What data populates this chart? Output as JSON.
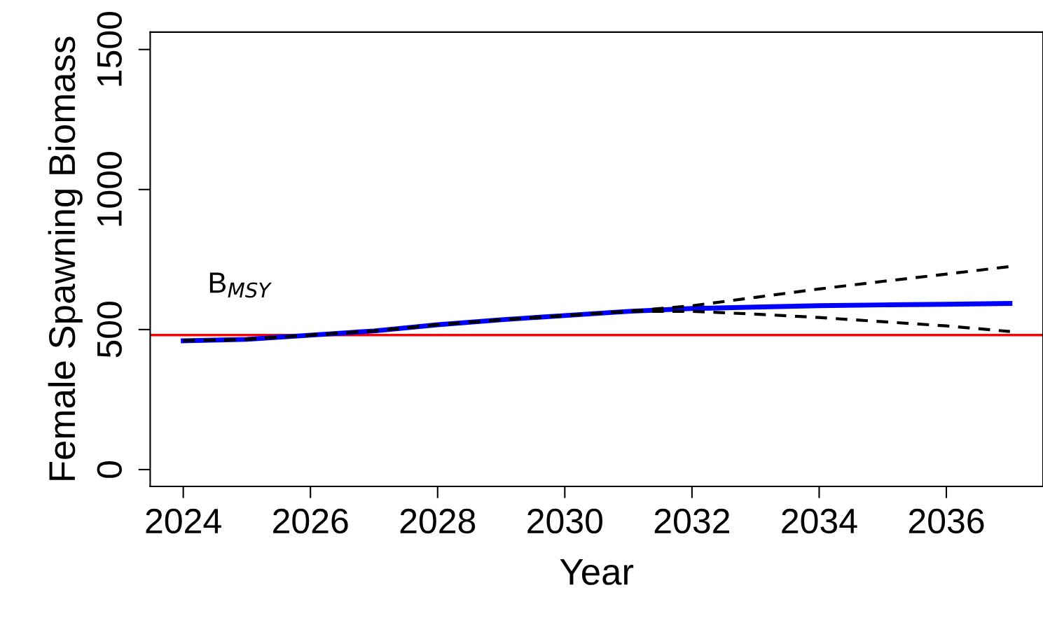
{
  "chart_data": {
    "type": "line",
    "xlabel": "Year",
    "ylabel": "Female Spawning Biomass",
    "x": [
      2024,
      2025,
      2026,
      2027,
      2028,
      2029,
      2030,
      2031,
      2032,
      2033,
      2034,
      2035,
      2036,
      2037
    ],
    "series": [
      {
        "color": "#0000ff",
        "line_style": "solid",
        "values": [
          460,
          465,
          480,
          495,
          517,
          535,
          550,
          565,
          575,
          580,
          585,
          588,
          590,
          593
        ]
      },
      {
        "color": "#000000",
        "line_style": "dashed",
        "values": [
          460,
          465,
          480,
          495,
          517,
          535,
          550,
          565,
          585,
          615,
          645,
          672,
          698,
          725
        ]
      },
      {
        "color": "#000000",
        "line_style": "dashed",
        "values": [
          460,
          465,
          480,
          495,
          517,
          535,
          550,
          565,
          565,
          555,
          543,
          528,
          513,
          493
        ]
      }
    ],
    "xlim": [
      2023.48,
      2037.52
    ],
    "xticks": [
      2024,
      2026,
      2028,
      2030,
      2032,
      2034,
      2036
    ],
    "ylim": [
      -60,
      1562
    ],
    "yticks": [
      0,
      500,
      1000,
      1500
    ],
    "ref_lines": [
      {
        "axis": "y",
        "value": 480,
        "label": "B$_{MSY}$",
        "color": "#ff0000"
      }
    ],
    "grid": false,
    "legend": false,
    "marker": "none"
  }
}
